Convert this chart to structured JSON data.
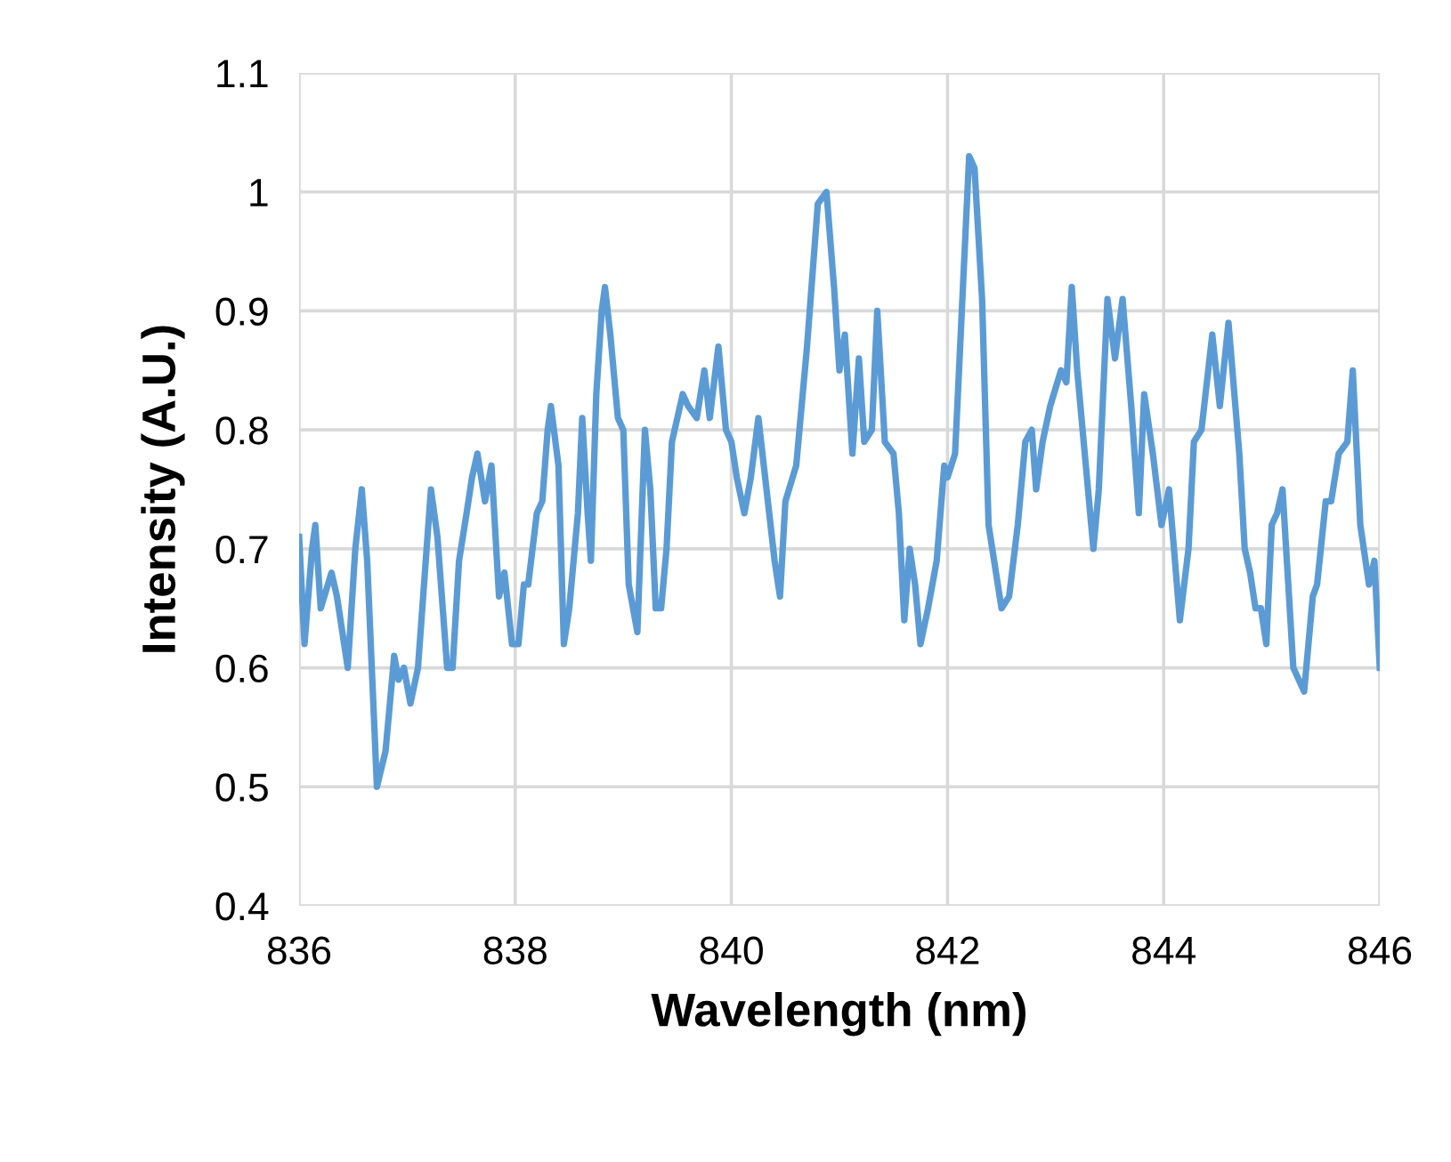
{
  "chart_data": {
    "type": "line",
    "xlabel": "Wavelength (nm)",
    "ylabel": "Intensity (A.U.)",
    "x": [
      836.0,
      836.05,
      836.12,
      836.15,
      836.2,
      836.3,
      836.35,
      836.45,
      836.52,
      836.58,
      836.63,
      836.72,
      836.8,
      836.88,
      836.92,
      836.97,
      837.03,
      837.1,
      837.18,
      837.22,
      837.28,
      837.37,
      837.42,
      837.48,
      837.55,
      837.6,
      837.65,
      837.72,
      837.78,
      837.85,
      837.9,
      837.97,
      838.03,
      838.08,
      838.12,
      838.2,
      838.25,
      838.3,
      838.33,
      838.4,
      838.45,
      838.5,
      838.58,
      838.62,
      838.67,
      838.7,
      838.75,
      838.8,
      838.83,
      838.88,
      838.95,
      839.0,
      839.05,
      839.13,
      839.2,
      839.25,
      839.3,
      839.35,
      839.4,
      839.45,
      839.55,
      839.6,
      839.68,
      839.75,
      839.8,
      839.88,
      839.95,
      840.0,
      840.05,
      840.12,
      840.18,
      840.25,
      840.3,
      840.4,
      840.45,
      840.5,
      840.6,
      840.7,
      840.8,
      840.88,
      840.95,
      841.0,
      841.05,
      841.12,
      841.18,
      841.23,
      841.3,
      841.35,
      841.42,
      841.5,
      841.55,
      841.6,
      841.65,
      841.7,
      841.75,
      841.82,
      841.9,
      841.97,
      842.0,
      842.07,
      842.2,
      842.25,
      842.32,
      842.38,
      842.5,
      842.57,
      842.65,
      842.72,
      842.78,
      842.82,
      842.88,
      842.95,
      843.05,
      843.1,
      843.15,
      843.2,
      843.28,
      843.35,
      843.4,
      843.48,
      843.55,
      843.62,
      843.7,
      843.77,
      843.82,
      843.9,
      843.98,
      844.05,
      844.15,
      844.23,
      844.28,
      844.35,
      844.45,
      844.52,
      844.6,
      844.7,
      844.75,
      844.8,
      844.85,
      844.9,
      844.95,
      845.0,
      845.05,
      845.1,
      845.2,
      845.3,
      845.38,
      845.42,
      845.5,
      845.55,
      845.62,
      845.7,
      845.75,
      845.82,
      845.9,
      845.95,
      846.0
    ],
    "series": [
      {
        "color": "#5b9bd5",
        "values": [
          0.71,
          0.62,
          0.7,
          0.72,
          0.65,
          0.68,
          0.66,
          0.6,
          0.7,
          0.75,
          0.69,
          0.5,
          0.53,
          0.61,
          0.59,
          0.6,
          0.57,
          0.6,
          0.7,
          0.75,
          0.71,
          0.6,
          0.6,
          0.69,
          0.73,
          0.76,
          0.78,
          0.74,
          0.77,
          0.66,
          0.68,
          0.62,
          0.62,
          0.67,
          0.67,
          0.73,
          0.74,
          0.8,
          0.82,
          0.77,
          0.62,
          0.65,
          0.73,
          0.81,
          0.73,
          0.69,
          0.83,
          0.9,
          0.92,
          0.88,
          0.81,
          0.8,
          0.67,
          0.63,
          0.8,
          0.75,
          0.65,
          0.65,
          0.7,
          0.79,
          0.83,
          0.82,
          0.81,
          0.85,
          0.81,
          0.87,
          0.8,
          0.79,
          0.76,
          0.73,
          0.76,
          0.81,
          0.77,
          0.69,
          0.66,
          0.74,
          0.77,
          0.87,
          0.99,
          1.0,
          0.92,
          0.85,
          0.88,
          0.78,
          0.86,
          0.79,
          0.8,
          0.9,
          0.79,
          0.78,
          0.73,
          0.64,
          0.7,
          0.67,
          0.62,
          0.65,
          0.69,
          0.77,
          0.76,
          0.78,
          1.03,
          1.02,
          0.91,
          0.72,
          0.65,
          0.66,
          0.72,
          0.79,
          0.8,
          0.75,
          0.79,
          0.82,
          0.85,
          0.84,
          0.92,
          0.85,
          0.77,
          0.7,
          0.75,
          0.91,
          0.86,
          0.91,
          0.82,
          0.73,
          0.83,
          0.78,
          0.72,
          0.75,
          0.64,
          0.7,
          0.79,
          0.8,
          0.88,
          0.82,
          0.89,
          0.78,
          0.7,
          0.68,
          0.65,
          0.65,
          0.62,
          0.72,
          0.73,
          0.75,
          0.6,
          0.58,
          0.66,
          0.67,
          0.74,
          0.74,
          0.78,
          0.79,
          0.85,
          0.72,
          0.67,
          0.69,
          0.6
        ]
      }
    ],
    "xlim": [
      836,
      846
    ],
    "xticks": [
      836,
      838,
      840,
      842,
      844,
      846
    ],
    "ylim": [
      0.4,
      1.1
    ],
    "yticks": [
      0.4,
      0.5,
      0.6,
      0.7,
      0.8,
      0.9,
      1,
      1.1
    ],
    "grid": true,
    "legend": false,
    "marker": "none",
    "line_style": "solid"
  }
}
